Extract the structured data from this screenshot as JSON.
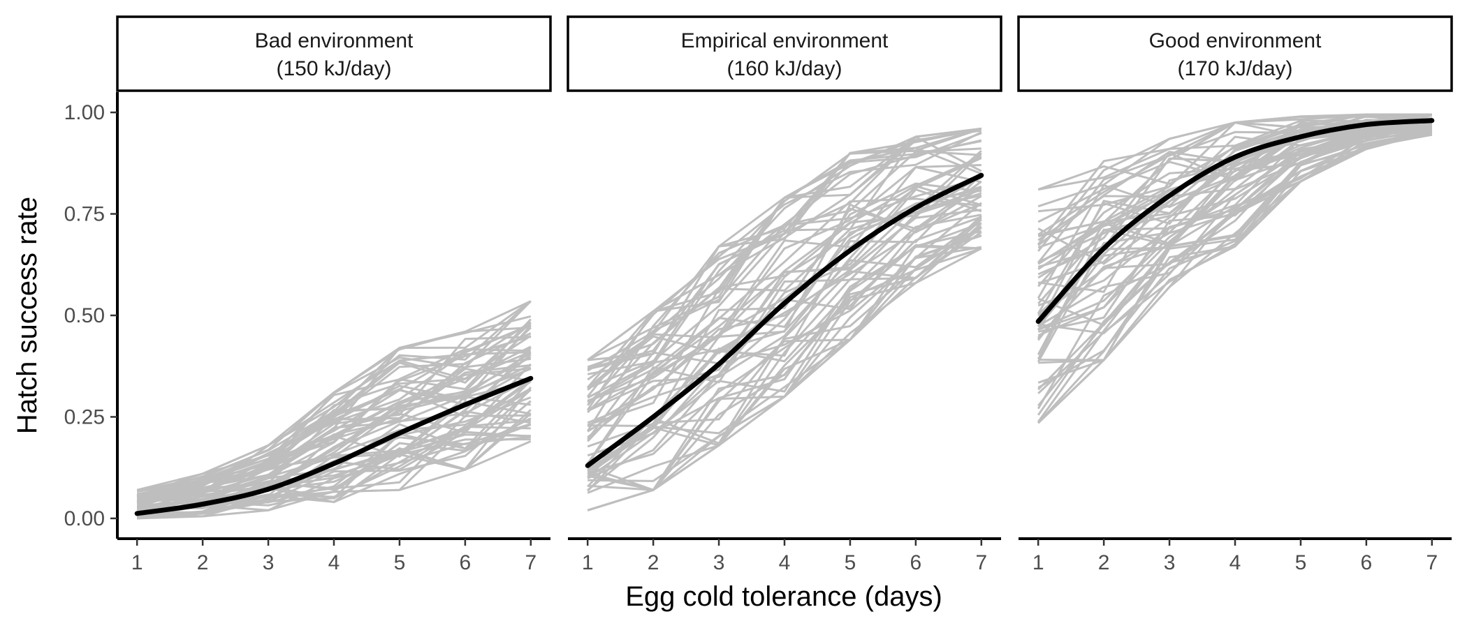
{
  "chart_data": {
    "type": "line",
    "ylabel": "Hatch success rate",
    "xlabel": "Egg cold tolerance (days)",
    "x": [
      1,
      2,
      3,
      4,
      5,
      6,
      7
    ],
    "xlim": [
      0.7,
      7.3
    ],
    "ylim": [
      -0.05,
      1.05
    ],
    "x_ticks": [
      "1",
      "2",
      "3",
      "4",
      "5",
      "6",
      "7"
    ],
    "y_ticks": [
      "0.00",
      "0.25",
      "0.50",
      "0.75",
      "1.00"
    ],
    "y_tick_values": [
      0,
      0.25,
      0.5,
      0.75,
      1.0
    ],
    "grid": false,
    "colors": {
      "simulation": "#bebebe",
      "fit": "#000000"
    },
    "panels": [
      {
        "title_line1": "Bad environment",
        "title_line2": "(150 kJ/day)",
        "fit": [
          0.012,
          0.035,
          0.072,
          0.135,
          0.21,
          0.28,
          0.345
        ],
        "sim_low": [
          0.0,
          0.005,
          0.02,
          0.04,
          0.07,
          0.12,
          0.19
        ],
        "sim_high": [
          0.07,
          0.11,
          0.18,
          0.31,
          0.42,
          0.46,
          0.535
        ]
      },
      {
        "title_line1": "Empirical environment",
        "title_line2": "(160 kJ/day)",
        "fit": [
          0.13,
          0.25,
          0.38,
          0.53,
          0.66,
          0.765,
          0.845
        ],
        "sim_low": [
          0.02,
          0.07,
          0.18,
          0.3,
          0.44,
          0.58,
          0.665
        ],
        "sim_high": [
          0.39,
          0.51,
          0.67,
          0.79,
          0.9,
          0.94,
          0.96
        ]
      },
      {
        "title_line1": "Good environment",
        "title_line2": "(170 kJ/day)",
        "fit": [
          0.485,
          0.665,
          0.795,
          0.89,
          0.94,
          0.97,
          0.98
        ],
        "sim_low": [
          0.235,
          0.39,
          0.57,
          0.67,
          0.83,
          0.91,
          0.945
        ],
        "sim_high": [
          0.81,
          0.88,
          0.935,
          0.975,
          0.99,
          0.995,
          0.995
        ]
      }
    ]
  }
}
